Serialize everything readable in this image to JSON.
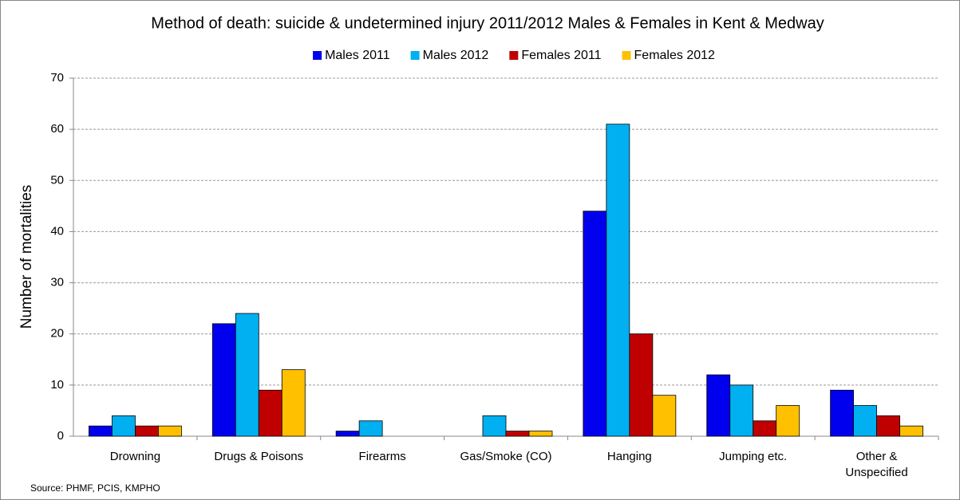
{
  "chart_data": {
    "type": "bar",
    "title": "Method of death: suicide & undetermined injury 2011/2012 Males & Females in Kent & Medway",
    "y_label": "Number of mortalities",
    "source": "Source: PHMF, PCIS, KMPHO",
    "categories": [
      "Drowning",
      "Drugs & Poisons",
      "Firearms",
      "Gas/Smoke (CO)",
      "Hanging",
      "Jumping etc.",
      "Other & Unspecified"
    ],
    "series": [
      {
        "name": "Males 2011",
        "color": "#0000ee",
        "values": [
          2,
          22,
          1,
          0,
          44,
          12,
          9
        ]
      },
      {
        "name": "Males 2012",
        "color": "#00b0f0",
        "values": [
          4,
          24,
          3,
          4,
          61,
          10,
          6
        ]
      },
      {
        "name": "Females 2011",
        "color": "#c00000",
        "values": [
          2,
          9,
          0,
          1,
          20,
          3,
          4
        ]
      },
      {
        "name": "Females 2012",
        "color": "#ffc000",
        "values": [
          2,
          13,
          0,
          1,
          8,
          6,
          2
        ]
      }
    ],
    "ylim": [
      0,
      70
    ],
    "yticks": [
      0,
      10,
      20,
      30,
      40,
      50,
      60,
      70
    ],
    "grid": true,
    "legend": "top"
  }
}
